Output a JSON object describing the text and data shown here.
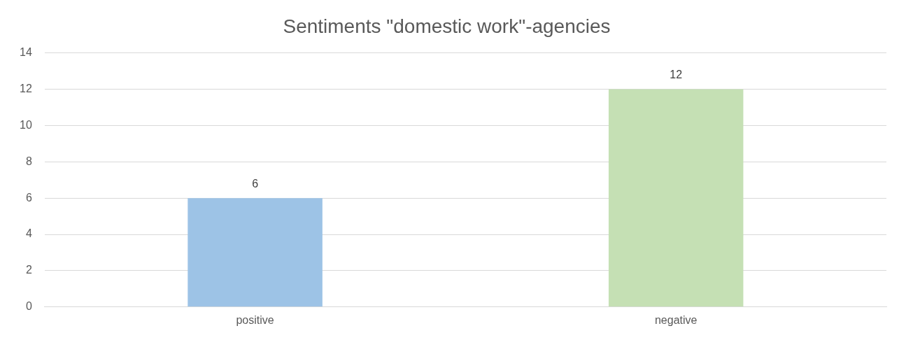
{
  "chart_data": {
    "type": "bar",
    "title": "Sentiments \"domestic work\"-agencies",
    "categories": [
      "positive",
      "negative"
    ],
    "values": [
      6,
      12
    ],
    "colors": [
      "#9dc3e6",
      "#c5e0b4"
    ],
    "ylim": [
      0,
      14
    ],
    "yticks": [
      0,
      2,
      4,
      6,
      8,
      10,
      12,
      14
    ],
    "grid": "y",
    "legend": false,
    "data_labels": true
  }
}
